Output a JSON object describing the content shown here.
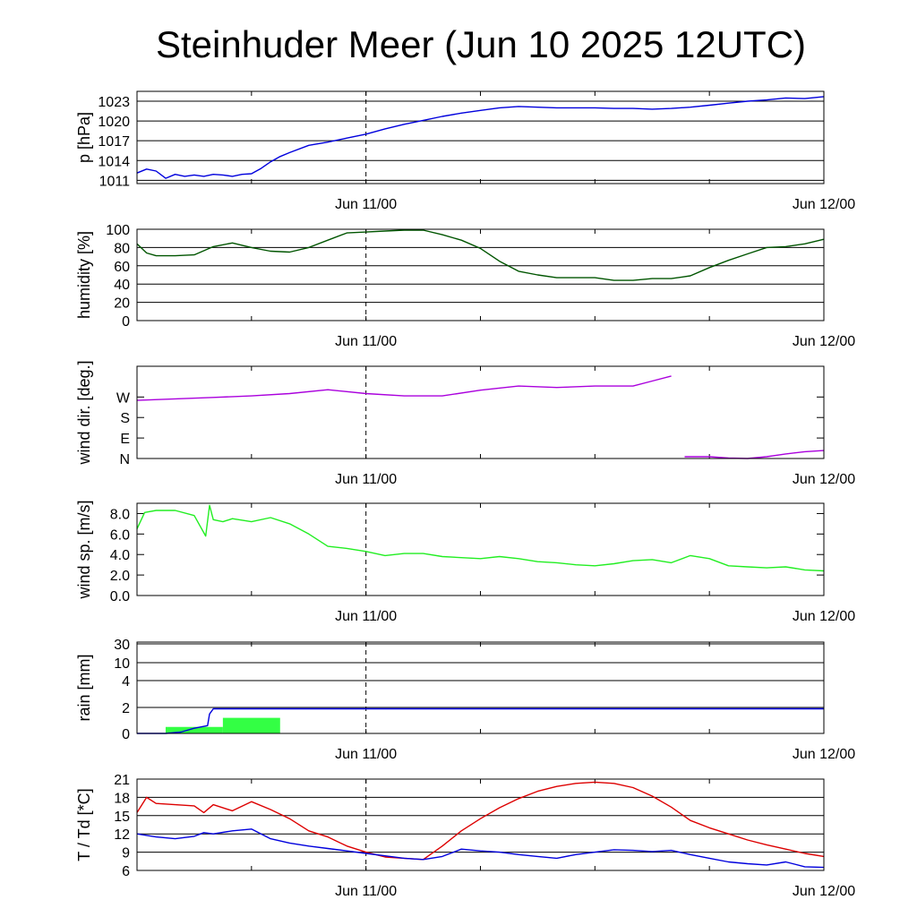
{
  "title": "Steinhuder Meer (Jun 10 2025 12UTC)",
  "chart_data": [
    {
      "type": "line",
      "ylabel": "p [hPa]",
      "ylim": [
        1010.5,
        1024.5
      ],
      "yticks": [
        1011,
        1014,
        1017,
        1020,
        1023
      ],
      "ytick_labels": [
        "1011",
        "1014",
        "1017",
        "1020",
        "1023"
      ],
      "grid": true,
      "xlim": [
        0,
        36
      ],
      "xticks": [
        12,
        36
      ],
      "xtick_labels": [
        "Jun 11/00",
        "Jun 12/00"
      ],
      "series": [
        {
          "color": "#0000dd",
          "x": [
            0,
            0.5,
            1,
            1.5,
            2,
            2.5,
            3,
            3.5,
            4,
            4.5,
            5,
            5.5,
            6,
            6.5,
            7,
            7.5,
            8,
            9,
            10,
            11,
            12,
            13,
            14,
            15,
            16,
            17,
            18,
            19,
            20,
            21,
            22,
            23,
            24,
            25,
            26,
            27,
            28,
            29,
            30,
            31,
            32,
            33,
            34,
            35,
            36
          ],
          "y": [
            1012.1,
            1012.7,
            1012.4,
            1011.3,
            1011.9,
            1011.6,
            1011.8,
            1011.6,
            1011.9,
            1011.8,
            1011.6,
            1011.9,
            1012.0,
            1012.8,
            1013.8,
            1014.6,
            1015.2,
            1016.3,
            1016.8,
            1017.4,
            1018.0,
            1018.8,
            1019.5,
            1020.1,
            1020.7,
            1021.2,
            1021.6,
            1022.0,
            1022.2,
            1022.1,
            1022.0,
            1022.0,
            1022.0,
            1021.9,
            1021.9,
            1021.8,
            1021.9,
            1022.1,
            1022.4,
            1022.7,
            1023.0,
            1023.2,
            1023.5,
            1023.4,
            1023.7
          ]
        }
      ]
    },
    {
      "type": "line",
      "ylabel": "humidity [%]",
      "ylim": [
        0,
        100
      ],
      "yticks": [
        0,
        20,
        40,
        60,
        80,
        100
      ],
      "ytick_labels": [
        "0",
        "20",
        "40",
        "60",
        "80",
        "100"
      ],
      "grid": true,
      "xlim": [
        0,
        36
      ],
      "xticks": [
        12,
        36
      ],
      "xtick_labels": [
        "Jun 11/00",
        "Jun 12/00"
      ],
      "series": [
        {
          "color": "#005500",
          "x": [
            0,
            0.5,
            1,
            2,
            3,
            4,
            5,
            6,
            7,
            8,
            9,
            10,
            11,
            12,
            13,
            14,
            15,
            16,
            17,
            18,
            19,
            20,
            21,
            22,
            23,
            24,
            25,
            26,
            27,
            28,
            29,
            30,
            31,
            32,
            33,
            34,
            35,
            36
          ],
          "y": [
            84,
            74,
            71,
            71,
            72,
            81,
            85,
            80,
            76,
            75,
            80,
            88,
            96,
            97,
            98,
            99,
            99,
            94,
            88,
            79,
            65,
            54,
            50,
            47,
            47,
            47,
            44,
            44,
            46,
            46,
            49,
            58,
            66,
            73,
            80,
            81,
            84,
            89
          ]
        }
      ]
    },
    {
      "type": "line",
      "ylabel": "wind dir. [deg.]",
      "ylim": [
        0,
        405
      ],
      "yticks": [
        0,
        90,
        180,
        270
      ],
      "ytick_labels": [
        "N",
        "E",
        "S",
        "W"
      ],
      "grid": false,
      "xlim": [
        0,
        36
      ],
      "xticks": [
        12,
        36
      ],
      "xtick_labels": [
        "Jun 11/00",
        "Jun 12/00"
      ],
      "series": [
        {
          "color": "#aa00dd",
          "x": [
            0,
            2,
            4,
            6,
            8,
            10,
            12,
            14,
            16,
            18,
            20,
            22,
            24,
            26,
            27,
            28
          ],
          "y": [
            255,
            262,
            268,
            275,
            285,
            302,
            285,
            275,
            275,
            300,
            318,
            312,
            318,
            318,
            340,
            362
          ]
        },
        {
          "color": "#aa00dd",
          "x": [
            28.7,
            30,
            31,
            32,
            33,
            34,
            35,
            36
          ],
          "y": [
            8,
            8,
            2,
            0,
            8,
            20,
            30,
            35
          ]
        }
      ]
    },
    {
      "type": "line",
      "ylabel": "wind sp. [m/s]",
      "ylim": [
        0,
        9.0
      ],
      "yticks": [
        0,
        2,
        4,
        6,
        8
      ],
      "ytick_labels": [
        "0.0",
        "2.0",
        "4.0",
        "6.0",
        "8.0"
      ],
      "grid": false,
      "xlim": [
        0,
        36
      ],
      "xticks": [
        12,
        36
      ],
      "xtick_labels": [
        "Jun 11/00",
        "Jun 12/00"
      ],
      "series": [
        {
          "color": "#22ee22",
          "x": [
            0,
            0.4,
            1,
            2,
            3,
            3.6,
            3.8,
            4,
            4.5,
            5,
            6,
            7,
            8,
            9,
            10,
            11,
            12,
            13,
            14,
            15,
            16,
            17,
            18,
            19,
            20,
            21,
            22,
            23,
            24,
            25,
            26,
            27,
            28,
            29,
            30,
            31,
            32,
            33,
            34,
            35,
            36
          ],
          "y": [
            6.5,
            8.1,
            8.3,
            8.3,
            7.8,
            5.8,
            8.8,
            7.4,
            7.2,
            7.5,
            7.2,
            7.6,
            7.0,
            6.0,
            4.8,
            4.6,
            4.3,
            3.9,
            4.1,
            4.1,
            3.8,
            3.7,
            3.6,
            3.8,
            3.6,
            3.3,
            3.2,
            3.0,
            2.9,
            3.1,
            3.4,
            3.5,
            3.2,
            3.9,
            3.6,
            2.9,
            2.8,
            2.7,
            2.8,
            2.5,
            2.4
          ]
        }
      ]
    },
    {
      "type": "bar",
      "ylabel": "rain [mm]",
      "yticks": [
        0,
        2,
        4,
        10,
        30
      ],
      "ytick_labels": [
        "0",
        "2",
        "4",
        "10",
        "30"
      ],
      "grid": true,
      "xlim": [
        0,
        36
      ],
      "xticks": [
        12,
        36
      ],
      "xtick_labels": [
        "Jun 11/00",
        "Jun 12/00"
      ],
      "bars": {
        "color": "#33ff44",
        "x_start": [
          1.5,
          4.5
        ],
        "x_end": [
          4.5,
          7.5
        ],
        "values": [
          0.5,
          1.2
        ]
      },
      "series": [
        {
          "color": "#0000dd",
          "x": [
            0,
            1.5,
            2.3,
            3.0,
            3.7,
            3.8,
            4.0,
            36
          ],
          "y": [
            0,
            0,
            0.1,
            0.4,
            0.6,
            1.5,
            1.9,
            1.9
          ]
        }
      ]
    },
    {
      "type": "line",
      "ylabel": "T / Td [*C]",
      "ylim": [
        6,
        21
      ],
      "yticks": [
        6,
        9,
        12,
        15,
        18,
        21
      ],
      "ytick_labels": [
        "6",
        "9",
        "12",
        "15",
        "18",
        "21"
      ],
      "grid": true,
      "xlim": [
        0,
        36
      ],
      "xticks": [
        12,
        36
      ],
      "xtick_labels": [
        "Jun 11/00",
        "Jun 12/00"
      ],
      "series": [
        {
          "color": "#dd0000",
          "x": [
            0,
            0.5,
            1,
            2,
            3,
            3.5,
            4,
            5,
            6,
            7,
            8,
            9,
            10,
            11,
            12,
            13,
            14,
            15,
            16,
            17,
            18,
            19,
            20,
            21,
            22,
            23,
            24,
            25,
            26,
            27,
            28,
            29,
            30,
            31,
            32,
            33,
            34,
            35,
            36
          ],
          "y": [
            15.5,
            18.0,
            17.0,
            16.8,
            16.6,
            15.5,
            16.8,
            15.8,
            17.3,
            16.0,
            14.5,
            12.5,
            11.5,
            10.0,
            9.0,
            8.2,
            8.0,
            7.8,
            10.0,
            12.5,
            14.5,
            16.3,
            17.8,
            19.0,
            19.8,
            20.3,
            20.5,
            20.3,
            19.6,
            18.2,
            16.4,
            14.2,
            13.0,
            12.0,
            11.0,
            10.2,
            9.5,
            8.8,
            8.3
          ]
        },
        {
          "color": "#0000dd",
          "x": [
            0,
            1,
            2,
            3,
            3.5,
            4,
            5,
            6,
            7,
            8,
            9,
            10,
            11,
            12,
            13,
            14,
            15,
            16,
            17,
            18,
            19,
            20,
            21,
            22,
            23,
            24,
            25,
            26,
            27,
            28,
            29,
            30,
            31,
            32,
            33,
            34,
            35,
            36
          ],
          "y": [
            12.0,
            11.5,
            11.2,
            11.6,
            12.2,
            12.0,
            12.5,
            12.8,
            11.2,
            10.5,
            10.0,
            9.6,
            9.2,
            8.8,
            8.4,
            8.0,
            7.8,
            8.3,
            9.5,
            9.2,
            9.0,
            8.6,
            8.3,
            8.0,
            8.6,
            9.0,
            9.4,
            9.3,
            9.1,
            9.3,
            8.6,
            8.0,
            7.4,
            7.1,
            6.9,
            7.4,
            6.6,
            6.5
          ]
        }
      ]
    }
  ]
}
